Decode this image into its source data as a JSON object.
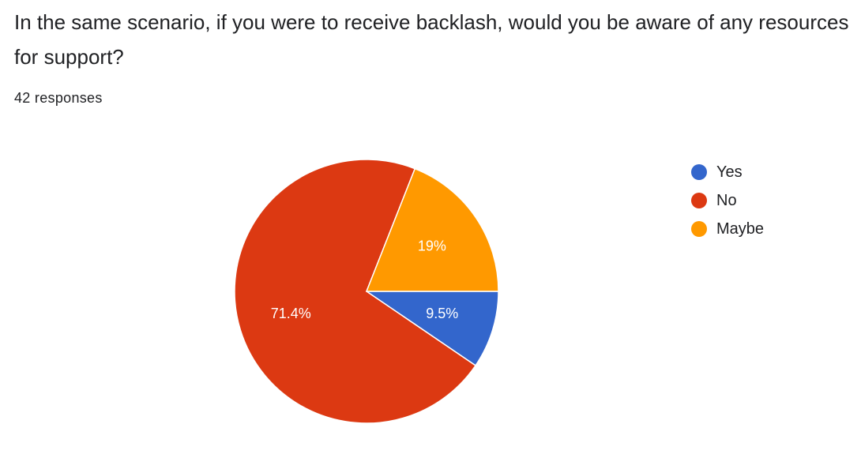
{
  "question": {
    "title": "In the same scenario, if you were to receive backlash, would you be aware of any resources for support?",
    "responses": "42 responses"
  },
  "chart_data": {
    "type": "pie",
    "title": "",
    "slices": [
      {
        "label": "Yes",
        "value": 9.5,
        "display": "9.5%",
        "color": "#3366cc"
      },
      {
        "label": "No",
        "value": 71.4,
        "display": "71.4%",
        "color": "#dc3912"
      },
      {
        "label": "Maybe",
        "value": 19,
        "display": "19%",
        "color": "#ff9900"
      }
    ],
    "legend": {
      "placement": "right"
    },
    "start_direction": "3 o'clock",
    "order": "clockwise from Yes"
  }
}
